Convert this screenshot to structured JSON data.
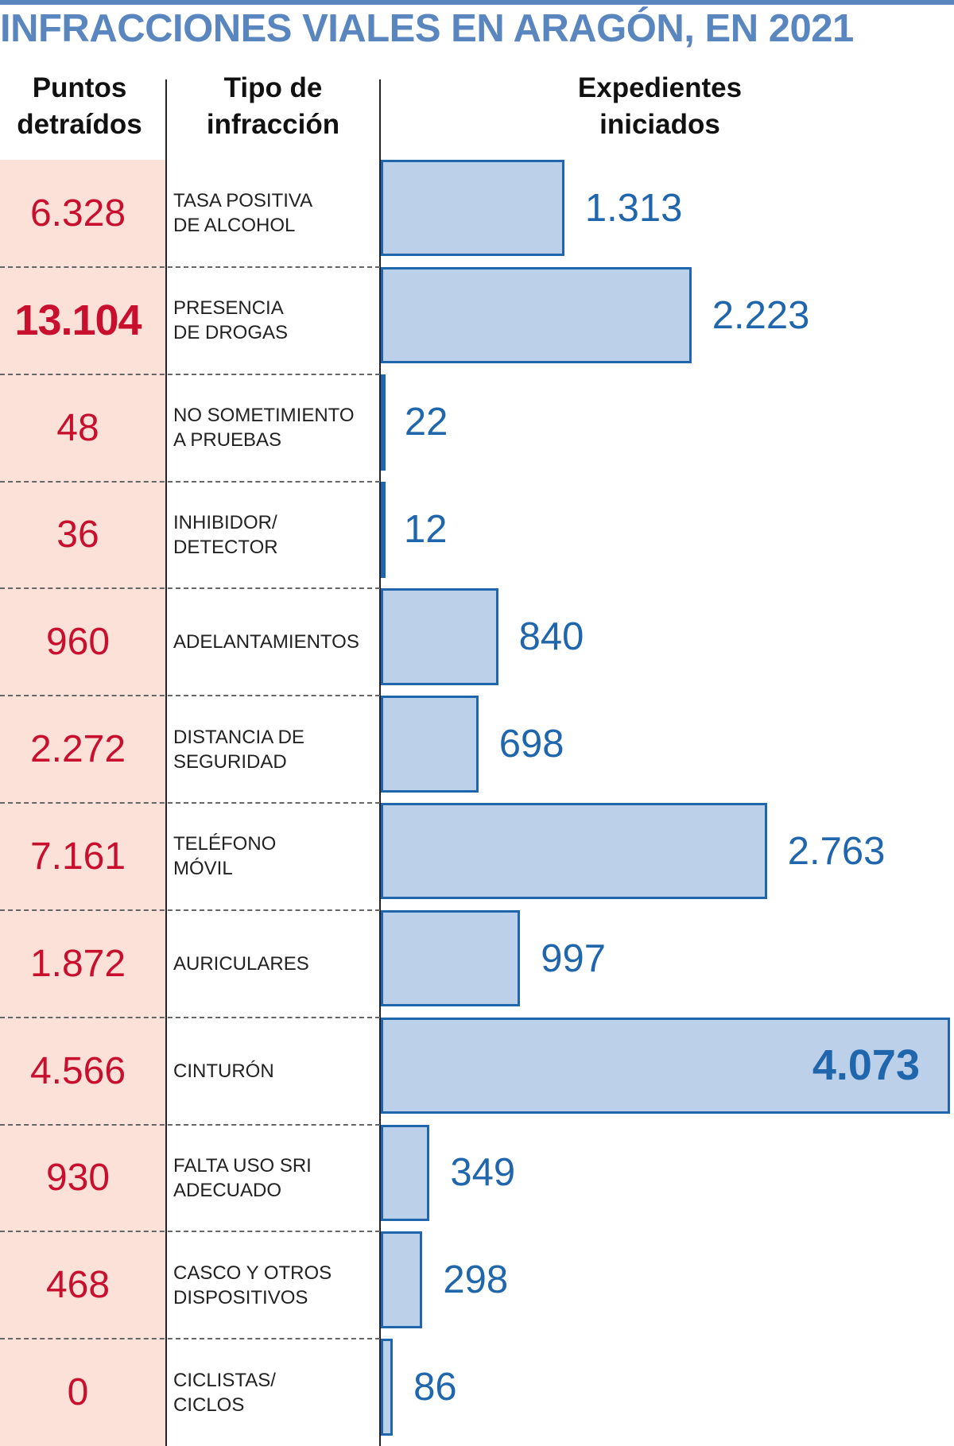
{
  "chart_data": {
    "type": "bar",
    "orientation": "horizontal",
    "title": "INFRACCIONES VIALES EN ARAGÓN, EN 2021",
    "column_headers": [
      "Puntos\ndetraídos",
      "Tipo de\ninfracción",
      "Expedientes\niniciados"
    ],
    "categories": [
      "TASA POSITIVA\nDE ALCOHOL",
      "PRESENCIA\nDE DROGAS",
      "NO SOMETIMIENTO\nA PRUEBAS",
      "INHIBIDOR/\nDETECTOR",
      "ADELANTAMIENTOS",
      "DISTANCIA DE\nSEGURIDAD",
      "TELÉFONO\nMÓVIL",
      "AURICULARES",
      "CINTURÓN",
      "FALTA USO SRI\nADECUADO",
      "CASCO Y OTROS\nDISPOSITIVOS",
      "CICLISTAS/\nCICLOS"
    ],
    "points": {
      "values": [
        6328,
        13104,
        48,
        36,
        960,
        2272,
        7161,
        1872,
        4566,
        930,
        468,
        0
      ],
      "value_labels": [
        "6.328",
        "13.104",
        "48",
        "36",
        "960",
        "2.272",
        "7.161",
        "1.872",
        "4.566",
        "930",
        "468",
        "0"
      ],
      "color": "#c8102e"
    },
    "series": [
      {
        "name": "Expedientes iniciados",
        "color": "#1f66ad",
        "values": [
          1313,
          2223,
          22,
          12,
          840,
          698,
          2763,
          997,
          4073,
          349,
          298,
          86
        ],
        "value_labels": [
          "1.313",
          "2.223",
          "22",
          "12",
          "840",
          "698",
          "2.763",
          "997",
          "4.073",
          "349",
          "298",
          "86"
        ]
      }
    ]
  }
}
